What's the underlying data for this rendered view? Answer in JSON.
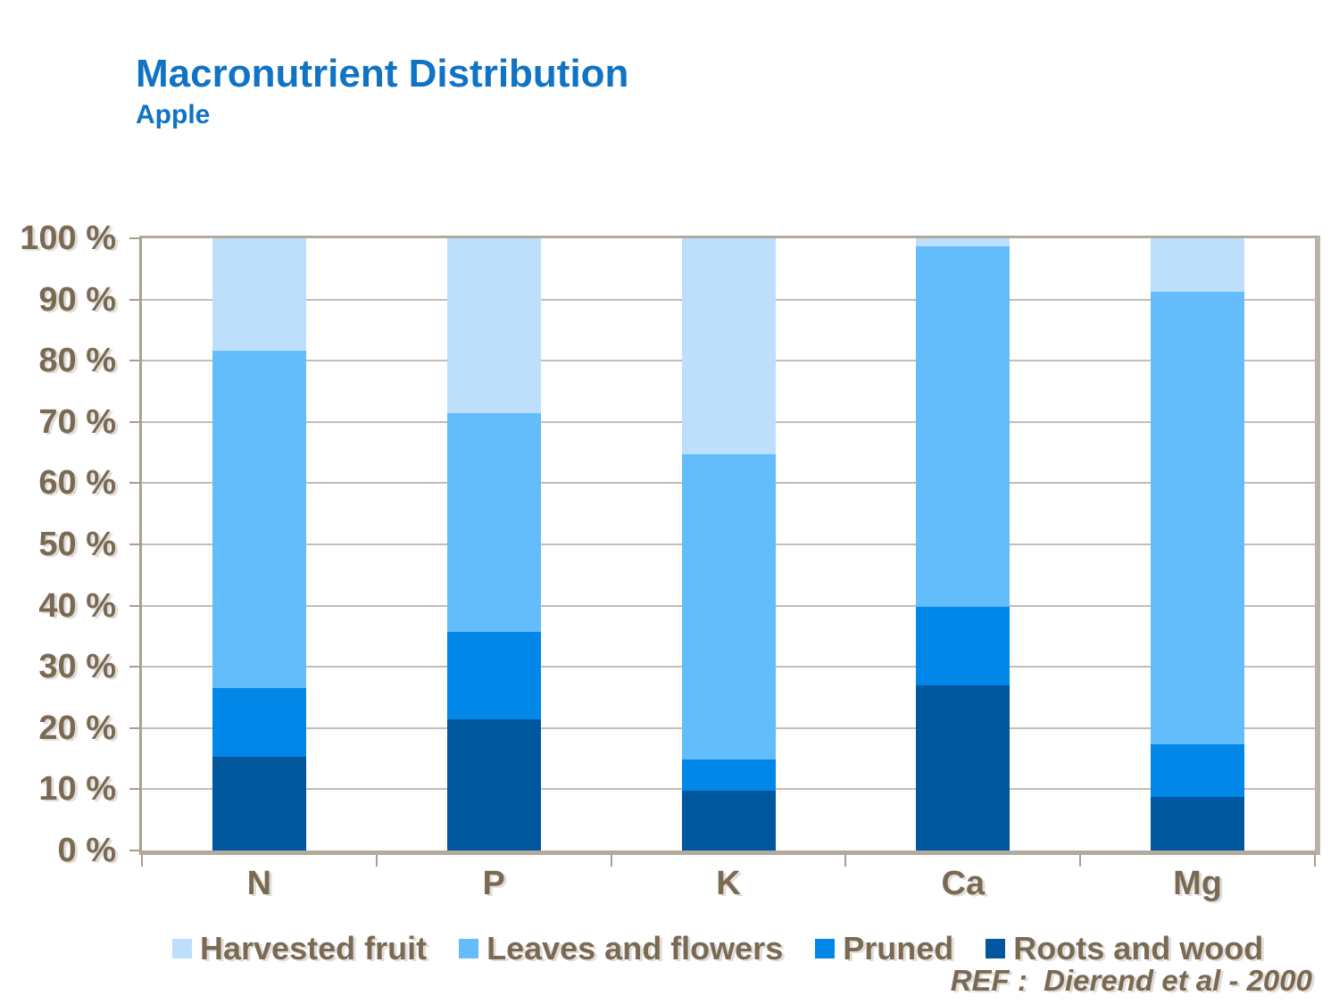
{
  "page": {
    "title": "Macronutrient Distribution",
    "subtitle": "Apple",
    "reference": "REF :  Dierend et al - 2000"
  },
  "colors": {
    "title_blue": "#1173c4",
    "label_brown": "#7a6a54",
    "gridline": "#c6bcb1",
    "frame": "#b3a99c"
  },
  "chart_data": {
    "type": "bar",
    "subtype": "stacked-percentage",
    "title": "Macronutrient Distribution",
    "subtitle": "Apple",
    "categories": [
      "N",
      "P",
      "K",
      "Ca",
      "Mg"
    ],
    "series": [
      {
        "name": "Harvested fruit",
        "color": "#bddffb",
        "values": [
          18.4,
          28.6,
          35.3,
          1.3,
          8.8
        ]
      },
      {
        "name": "Leaves and flowers",
        "color": "#63bdfb",
        "values": [
          55.1,
          35.7,
          49.9,
          58.9,
          73.9
        ]
      },
      {
        "name": "Pruned",
        "color": "#0087e8",
        "values": [
          11.2,
          14.3,
          5.0,
          12.9,
          8.6
        ]
      },
      {
        "name": "Roots and wood",
        "color": "#00579d",
        "values": [
          15.3,
          21.4,
          9.8,
          26.9,
          8.7
        ]
      }
    ],
    "stack_order_bottom_to_top": [
      "Roots and wood",
      "Pruned",
      "Leaves and flowers",
      "Harvested fruit"
    ],
    "y_axis": {
      "min": 0,
      "max": 100,
      "step": 10,
      "tick_labels": [
        "0 %",
        "10 %",
        "20 %",
        "30 %",
        "40 %",
        "50 %",
        "60 %",
        "70 %",
        "80 %",
        "90 %",
        "100 %"
      ]
    },
    "xlabel": "",
    "ylabel": "",
    "grid": true,
    "legend_position": "bottom",
    "annotation": "REF :  Dierend et al - 2000"
  }
}
